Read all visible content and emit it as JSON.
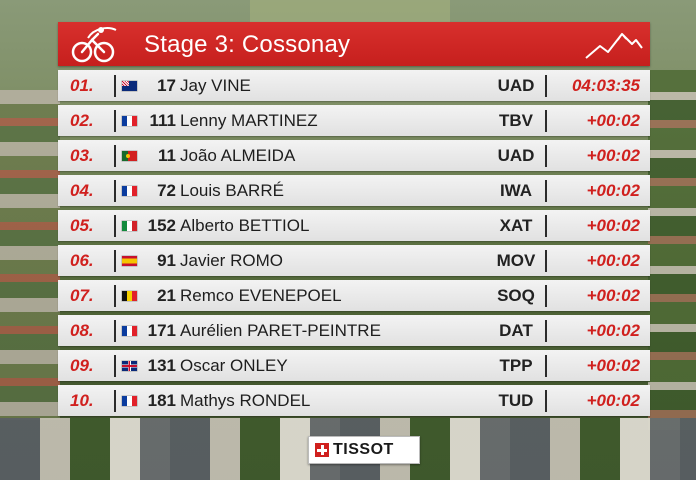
{
  "header": {
    "title": "Stage 3: Cossonay",
    "logo_icon": "cyclist-icon",
    "profile_icon": "mountain-icon",
    "accent_color": "#d0201e"
  },
  "results": [
    {
      "position": "01.",
      "flag": "au",
      "bib": "17",
      "name": "Jay VINE",
      "team": "UAD",
      "time": "04:03:35"
    },
    {
      "position": "02.",
      "flag": "fr",
      "bib": "111",
      "name": "Lenny MARTINEZ",
      "team": "TBV",
      "time": "+00:02"
    },
    {
      "position": "03.",
      "flag": "pt",
      "bib": "11",
      "name": "João ALMEIDA",
      "team": "UAD",
      "time": "+00:02"
    },
    {
      "position": "04.",
      "flag": "fr",
      "bib": "72",
      "name": "Louis BARRÉ",
      "team": "IWA",
      "time": "+00:02"
    },
    {
      "position": "05.",
      "flag": "it",
      "bib": "152",
      "name": "Alberto BETTIOL",
      "team": "XAT",
      "time": "+00:02"
    },
    {
      "position": "06.",
      "flag": "es",
      "bib": "91",
      "name": "Javier ROMO",
      "team": "MOV",
      "time": "+00:02"
    },
    {
      "position": "07.",
      "flag": "be",
      "bib": "21",
      "name": "Remco EVENEPOEL",
      "team": "SOQ",
      "time": "+00:02"
    },
    {
      "position": "08.",
      "flag": "fr",
      "bib": "171",
      "name": "Aurélien PARET-PEINTRE",
      "team": "DAT",
      "time": "+00:02"
    },
    {
      "position": "09.",
      "flag": "gb",
      "bib": "131",
      "name": "Oscar ONLEY",
      "team": "TPP",
      "time": "+00:02"
    },
    {
      "position": "10.",
      "flag": "fr",
      "bib": "181",
      "name": "Mathys RONDEL",
      "team": "TUD",
      "time": "+00:02"
    }
  ],
  "sponsor": {
    "name": "TISSOT",
    "icon": "swiss-cross-icon"
  }
}
